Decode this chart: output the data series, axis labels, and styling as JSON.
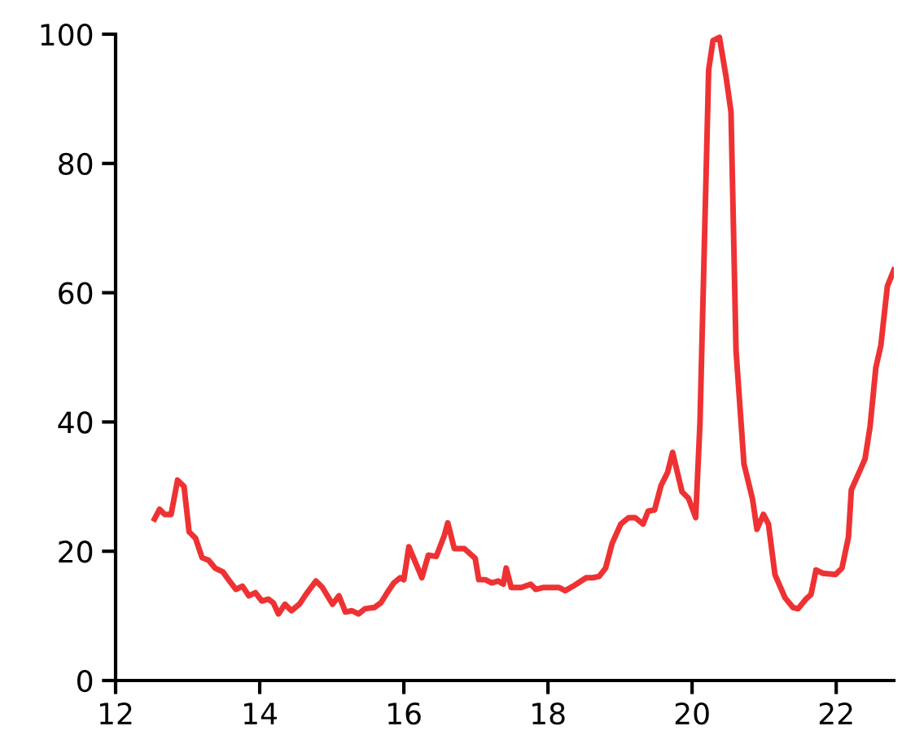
{
  "chart_data": {
    "type": "line",
    "xlim": [
      12,
      22.8
    ],
    "xticks": [
      12,
      14,
      16,
      18,
      20,
      22
    ],
    "ylim": [
      0,
      100
    ],
    "yticks": [
      0,
      20,
      40,
      60,
      80,
      100
    ],
    "grid": false,
    "legend": false,
    "series": [
      {
        "color": "#ee3233",
        "x": [
          12.54,
          12.61,
          12.68,
          12.77,
          12.86,
          12.95,
          13.02,
          13.11,
          13.2,
          13.29,
          13.38,
          13.49,
          13.58,
          13.67,
          13.76,
          13.85,
          13.94,
          14.03,
          14.12,
          14.19,
          14.26,
          14.35,
          14.44,
          14.55,
          14.64,
          14.78,
          14.87,
          15.01,
          15.1,
          15.19,
          15.28,
          15.37,
          15.46,
          15.59,
          15.68,
          15.77,
          15.86,
          15.95,
          16.0,
          16.07,
          16.25,
          16.34,
          16.45,
          16.56,
          16.61,
          16.7,
          16.84,
          16.99,
          17.04,
          17.13,
          17.22,
          17.31,
          17.38,
          17.42,
          17.49,
          17.63,
          17.76,
          17.83,
          17.94,
          18.15,
          18.24,
          18.35,
          18.46,
          18.53,
          18.62,
          18.71,
          18.8,
          18.89,
          19.01,
          19.12,
          19.21,
          19.32,
          19.39,
          19.48,
          19.57,
          19.66,
          19.73,
          19.86,
          19.95,
          20.05,
          20.11,
          20.23,
          20.29,
          20.38,
          20.47,
          20.54,
          20.61,
          20.72,
          20.84,
          20.9,
          20.99,
          21.06,
          21.15,
          21.29,
          21.4,
          21.47,
          21.58,
          21.65,
          21.72,
          21.81,
          21.99,
          22.08,
          22.17,
          22.21,
          22.33,
          22.4,
          22.47,
          22.55,
          22.62,
          22.71,
          22.8
        ],
        "values": [
          25,
          26.5,
          25.7,
          25.7,
          31,
          30,
          23,
          22,
          19,
          18.6,
          17.4,
          16.8,
          15.4,
          14.1,
          14.6,
          13.1,
          13.6,
          12.3,
          12.6,
          12,
          10.3,
          11.8,
          10.8,
          11.8,
          13.3,
          15.4,
          14.4,
          11.8,
          13.1,
          10.6,
          10.8,
          10.3,
          11.1,
          11.3,
          12,
          13.6,
          15.1,
          15.9,
          15.6,
          20.7,
          15.9,
          19.4,
          19.2,
          22.4,
          24.4,
          20.4,
          20.4,
          18.9,
          15.6,
          15.6,
          15.1,
          15.4,
          14.9,
          17.4,
          14.4,
          14.4,
          14.9,
          14.1,
          14.4,
          14.4,
          13.9,
          14.6,
          15.4,
          15.9,
          15.9,
          16.1,
          17.4,
          21.2,
          24.2,
          25.2,
          25.2,
          24.2,
          26.2,
          26.4,
          30.2,
          32.2,
          35.3,
          29.2,
          28.2,
          25.2,
          40,
          94.5,
          99,
          99.5,
          93.5,
          88,
          51,
          33.5,
          28,
          23.4,
          25.7,
          24.2,
          16.4,
          12.8,
          11.3,
          11.1,
          12.6,
          13.3,
          17.1,
          16.6,
          16.4,
          17.4,
          22.2,
          29.5,
          32.5,
          34.3,
          39.3,
          48.4,
          51.9,
          61,
          63.5
        ]
      }
    ]
  }
}
